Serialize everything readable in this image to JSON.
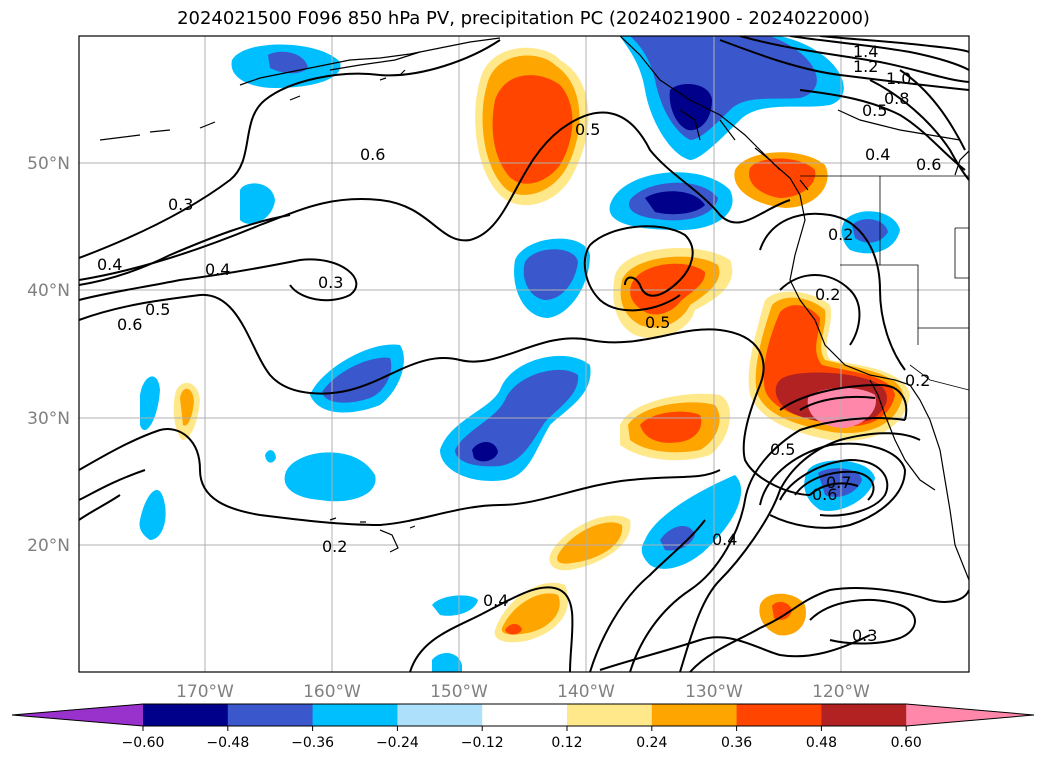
{
  "title": "2024021500 F096 850 hPa PV, precipitation PC (2024021900 - 2024022000)",
  "lat_labels": [
    "50°N",
    "40°N",
    "30°N",
    "20°N"
  ],
  "lon_labels": [
    "170°W",
    "160°W",
    "150°W",
    "140°W",
    "130°W",
    "120°W"
  ],
  "colorbar": {
    "colors": [
      "#9932CC",
      "#00008B",
      "#3A57CC",
      "#00BFFF",
      "#ADE0FA",
      "#FFFFFF",
      "#FFE88A",
      "#FFA500",
      "#FF4500",
      "#B22222",
      "#FF88AA"
    ],
    "ticks": [
      "−0.60",
      "−0.48",
      "−0.36",
      "−0.24",
      "−0.12",
      "0.12",
      "0.24",
      "0.36",
      "0.48",
      "0.60"
    ]
  },
  "contour_labels": [
    "1.4",
    "1.2",
    "1.0",
    "0.8",
    "0.5",
    "0.4",
    "0.6",
    "0.6",
    "0.3",
    "0.4",
    "0.4",
    "0.5",
    "0.6",
    "0.3",
    "0.5",
    "0.5",
    "0.2",
    "0.2",
    "0.5",
    "0.7",
    "0.6",
    "0.4",
    "0.2",
    "0.2",
    "0.4",
    "0.3"
  ]
}
